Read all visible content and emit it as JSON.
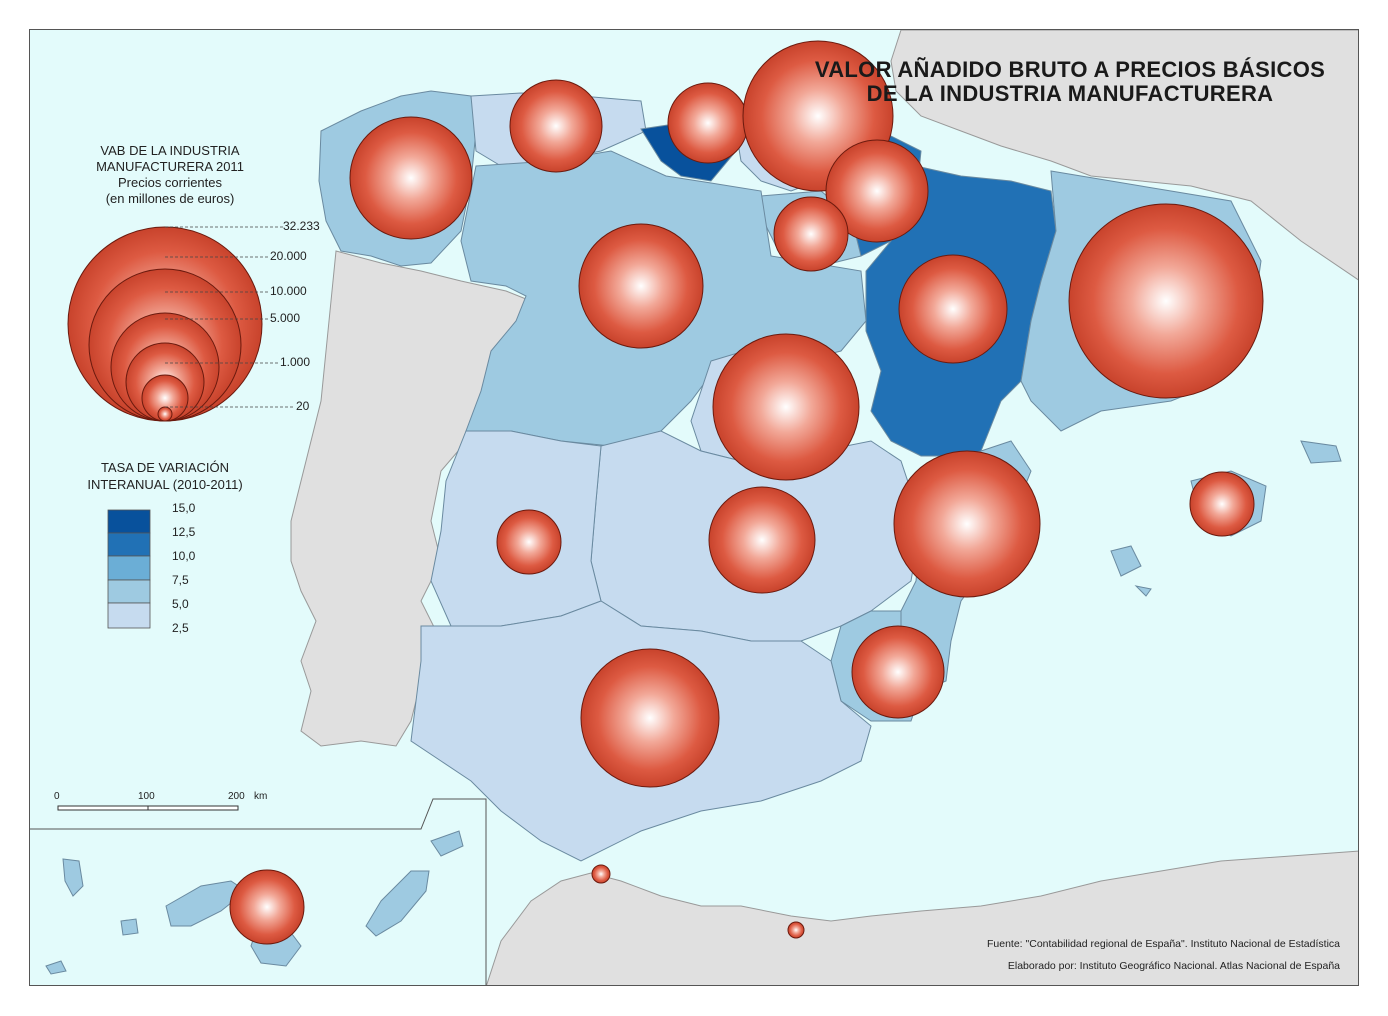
{
  "title": {
    "line1": "VALOR AÑADIDO BRUTO A PRECIOS BÁSICOS",
    "line2": "DE LA INDUSTRIA MANUFACTURERA"
  },
  "legend_size": {
    "heading1": "VAB DE LA INDUSTRIA",
    "heading2": "MANUFACTURERA 2011",
    "sub1": "Precios corrientes",
    "sub2": "(en millones de euros)",
    "values": [
      {
        "label": "32.233",
        "value": 32233
      },
      {
        "label": "20.000",
        "value": 20000
      },
      {
        "label": "10.000",
        "value": 10000
      },
      {
        "label": "5.000",
        "value": 5000
      },
      {
        "label": "1.000",
        "value": 1000
      },
      {
        "label": "20",
        "value": 20
      }
    ]
  },
  "legend_rate": {
    "heading1": "TASA DE VARIACIÓN",
    "heading2": "INTERANUAL (2010-2011)",
    "breaks": [
      "15,0",
      "12,5",
      "10,0",
      "7,5",
      "5,0",
      "2,5"
    ],
    "colors": [
      "#08519c",
      "#2171b5",
      "#6baed6",
      "#9ecae1",
      "#c6dbef"
    ]
  },
  "scale_bar": {
    "labels": [
      "0",
      "100",
      "200"
    ],
    "unit": "km"
  },
  "source": {
    "line1": "Fuente: \"Contabilidad regional de España\". Instituto Nacional de Estadística",
    "line2": "Elaborado por: Instituto Geográfico Nacional. Atlas Nacional de España"
  },
  "colors": {
    "sea": "#e3fbfb",
    "foreign_land": "#e0e0e0",
    "bubble_fill": "#d84c35",
    "bubble_highlight": "#ffffff",
    "bubble_stroke": "#6b1a0e"
  }
}
